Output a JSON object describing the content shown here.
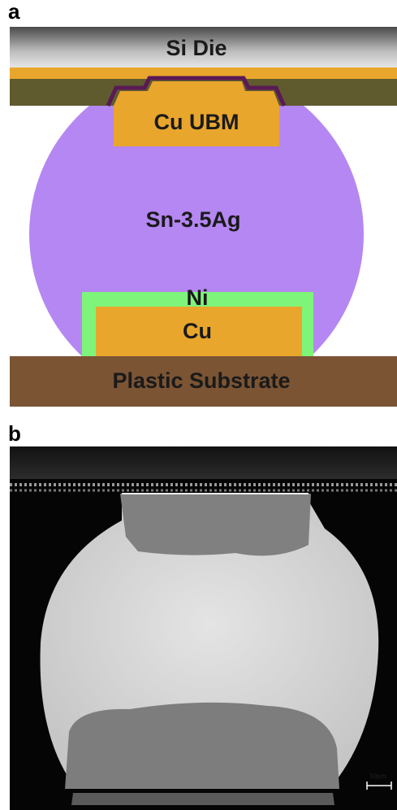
{
  "panel_a": {
    "label": "a",
    "si_die": "Si Die",
    "cu_ubm": "Cu UBM",
    "solder": "Sn-3.5Ag",
    "ni": "Ni",
    "cu": "Cu",
    "substrate": "Plastic Substrate"
  },
  "panel_b": {
    "label": "b",
    "scale_bar": "10μm"
  }
}
